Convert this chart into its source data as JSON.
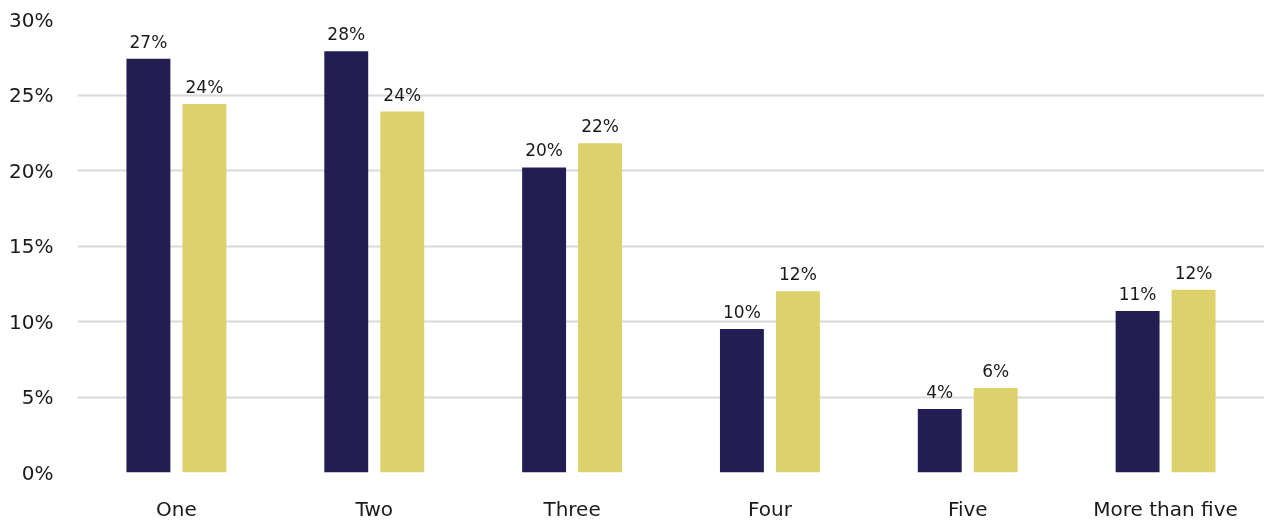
{
  "chart_data": {
    "type": "bar",
    "categories": [
      "One",
      "Two",
      "Three",
      "Four",
      "Five",
      "More than five"
    ],
    "series": [
      {
        "color": "#221e52",
        "values": [
          27.4,
          27.9,
          20.2,
          9.5,
          4.2,
          10.7
        ],
        "value_labels": [
          "27%",
          "28%",
          "20%",
          "10%",
          "4%",
          "11%"
        ]
      },
      {
        "color": "#ddd16c",
        "values": [
          24.4,
          23.9,
          21.8,
          12.0,
          5.6,
          12.1
        ],
        "value_labels": [
          "24%",
          "24%",
          "22%",
          "12%",
          "6%",
          "12%"
        ]
      }
    ],
    "ylim": [
      0,
      30
    ],
    "yticks": [
      {
        "value": 0,
        "label": "0%"
      },
      {
        "value": 5,
        "label": "5%"
      },
      {
        "value": 10,
        "label": "10%"
      },
      {
        "value": 15,
        "label": "15%"
      },
      {
        "value": 20,
        "label": "20%"
      },
      {
        "value": 25,
        "label": "25%"
      },
      {
        "value": 30,
        "label": "30%"
      }
    ],
    "grid": "y"
  }
}
